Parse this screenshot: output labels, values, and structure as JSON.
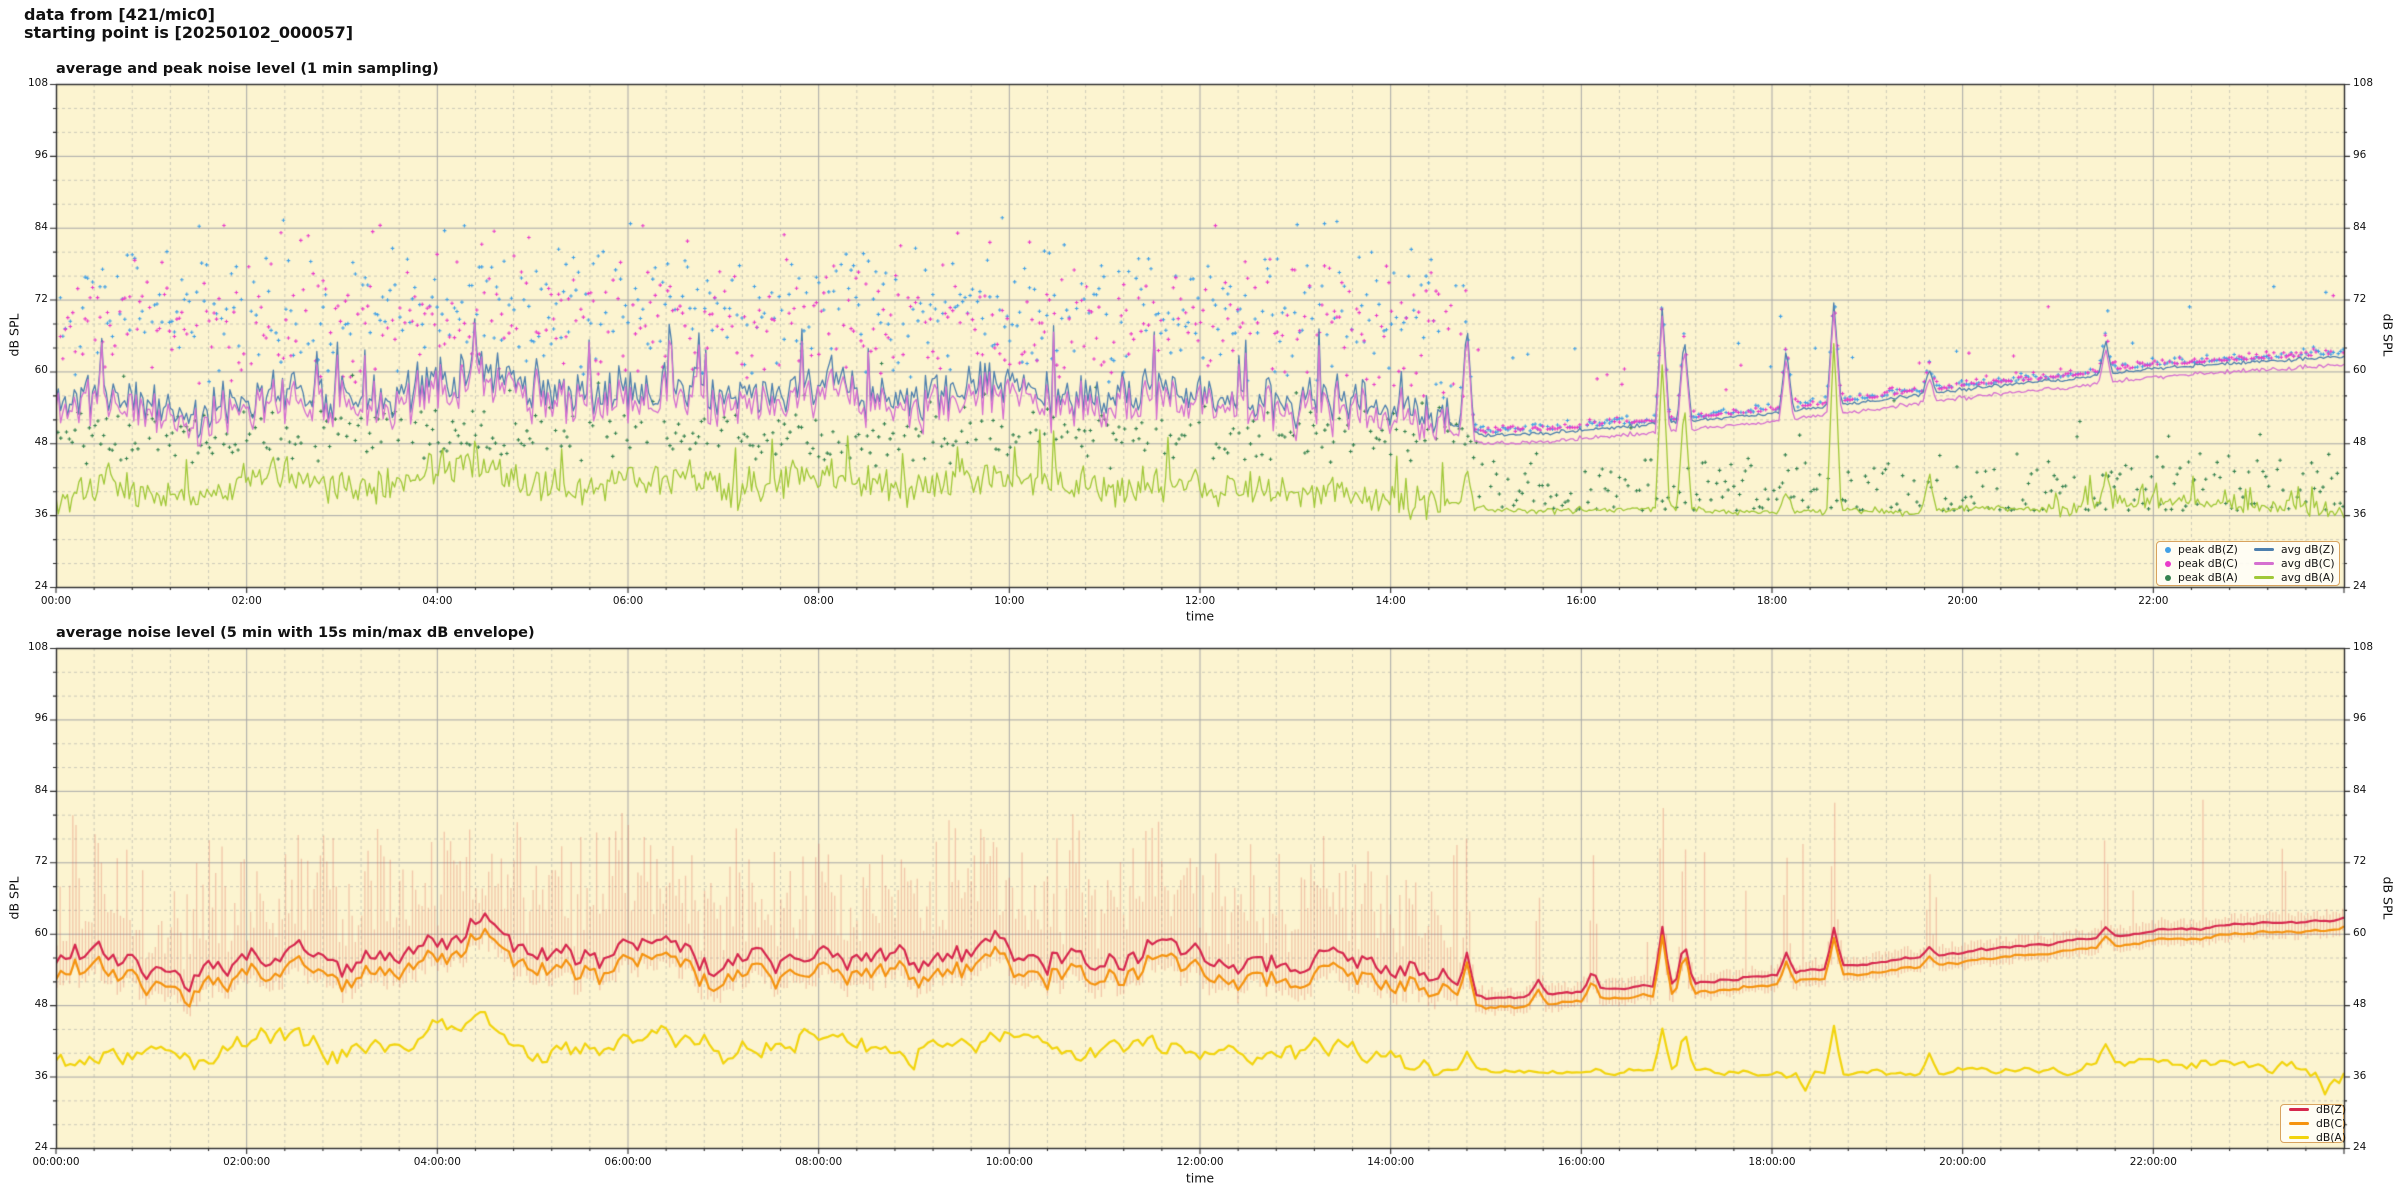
{
  "header": {
    "line1": "data from [421/mic0]",
    "line2": "starting point is [20250102_000057]"
  },
  "colors": {
    "figure_bg": "#ffffff",
    "plot_bg": "#fcf4d0",
    "grid_major": "#a8a8a8",
    "grid_minor": "#c2c0b4",
    "spine": "#2a2a2a",
    "peak_dBZ": "#41a0e6",
    "peak_dBC": "#e93bca",
    "peak_dBA": "#35824f",
    "avg_dBZ": "#4d7fae",
    "avg_dBC": "#d56fd0",
    "avg_dBA": "#a0c838",
    "dBZ_5min": "#d6274e",
    "dBC_5min": "#f5930f",
    "dBA_5min": "#f2d40e",
    "envelope": "rgba(225,110,90,0.32)",
    "legend_border": "#d8a35f"
  },
  "chart_data": [
    {
      "type": "line+scatter",
      "title": "average and peak noise level (1 min sampling)",
      "xlabel": "time",
      "ylabel_left": "dB SPL",
      "ylabel_right": "dB SPL",
      "xlim_hours": [
        0,
        24
      ],
      "ylim": [
        24,
        108
      ],
      "y_major_ticks": [
        24,
        36,
        48,
        60,
        72,
        84,
        96,
        108
      ],
      "y_minor_step_dB": 4,
      "x_major_step_hours": 2,
      "x_minor_step_minutes": 24,
      "x_tick_labels": [
        "00:00",
        "02:00",
        "04:00",
        "06:00",
        "08:00",
        "10:00",
        "12:00",
        "14:00",
        "16:00",
        "18:00",
        "20:00",
        "22:00"
      ],
      "grid": true,
      "legend_position": "lower right",
      "series": [
        {
          "name": "peak dB(Z)",
          "type": "scatter",
          "color": "#41a0e6",
          "early_band_dB": [
            61,
            87
          ],
          "late_offset_above_line_dB": [
            0.4,
            2.0
          ],
          "late_outlier_max_dB": 86
        },
        {
          "name": "peak dB(C)",
          "type": "scatter",
          "color": "#e93bca",
          "early_band_dB": [
            59,
            85
          ],
          "late_offset_above_line_dB": [
            0.3,
            1.8
          ],
          "late_outlier_max_dB": 84
        },
        {
          "name": "peak dB(A)",
          "type": "scatter",
          "color": "#35824f",
          "early_band_dB": [
            43,
            60
          ],
          "late_band_dB": [
            37,
            50
          ],
          "late_outlier_max_dB": 56
        },
        {
          "name": "avg dB(Z)",
          "type": "line",
          "color": "#4d7fae",
          "anchors_half_hour_dB": [
            55,
            57,
            54.5,
            52.5,
            56,
            57.5,
            55,
            55.5,
            59,
            61,
            57,
            55.5,
            57,
            58.5,
            55,
            56.5,
            58,
            56,
            55.5,
            57.5,
            58.5,
            56,
            55,
            57,
            56.5,
            55,
            54.5,
            56,
            54,
            52,
            49.2,
            49.6,
            50.2,
            50.8,
            51.5,
            52.2,
            53,
            54,
            55,
            56,
            57,
            57.8,
            58.5,
            59.5,
            60.5,
            61,
            61.5,
            62,
            62.5
          ],
          "jitter": {
            "early_amp_dB": 4.5,
            "early_spike_prob": 0.05,
            "early_spike_max_dB": 11,
            "late_amp_dB": 0.4,
            "quiet_after_hour": 14.6
          }
        },
        {
          "name": "avg dB(C)",
          "type": "line",
          "color": "#d56fd0",
          "offset_from_avg_dBZ_dB": {
            "early": -1.6,
            "late": -1.25
          },
          "jitter": {
            "early_amp_dB": 1.6,
            "late_amp_dB": 0.3
          }
        },
        {
          "name": "avg dB(A)",
          "type": "line",
          "color": "#a0c838",
          "anchors_half_hour_dB": [
            38,
            41,
            40,
            39,
            42,
            43,
            40,
            40.5,
            44,
            45,
            41,
            40,
            42,
            43,
            40,
            41,
            43,
            41,
            40.5,
            42,
            42.5,
            41,
            40,
            41.5,
            41,
            40,
            39.5,
            40.5,
            39,
            38,
            37,
            36.6,
            36.8,
            37,
            37.4,
            36.6,
            36.4,
            36.6,
            36.8,
            36.4,
            37.2,
            37,
            36.8,
            38.2,
            38.6,
            38.2,
            37.6,
            37.2,
            36.6
          ],
          "jitter": {
            "early_amp_dB": 3.6,
            "early_spike_prob": 0.04,
            "early_spike_max_dB": 8,
            "late_amp_dB": 0.7,
            "late_bumpy_after_hour": 20.9,
            "late_bumpy_amp_dB": 1.7
          }
        }
      ],
      "events": [
        {
          "t": 14.8,
          "z": 68,
          "a": 44
        },
        {
          "t": 16.85,
          "z": 71,
          "a": 62
        },
        {
          "t": 17.08,
          "z": 66,
          "a": 55
        },
        {
          "t": 18.15,
          "z": 64,
          "a": 40
        },
        {
          "t": 18.65,
          "z": 72,
          "a": 66
        },
        {
          "t": 19.65,
          "z": 60.5,
          "a": 43
        },
        {
          "t": 21.5,
          "z": 65,
          "a": 43
        }
      ]
    },
    {
      "type": "line+envelope",
      "title": "average noise level (5 min with 15s min/max dB envelope)",
      "xlabel": "time",
      "ylabel_left": "dB SPL",
      "ylabel_right": "dB SPL",
      "xlim_hours": [
        0,
        24
      ],
      "ylim": [
        24,
        108
      ],
      "y_major_ticks": [
        24,
        36,
        48,
        60,
        72,
        84,
        96,
        108
      ],
      "y_minor_step_dB": 4,
      "x_major_step_hours": 2,
      "x_minor_step_minutes": 24,
      "x_tick_labels": [
        "00:00:00",
        "02:00:00",
        "04:00:00",
        "06:00:00",
        "08:00:00",
        "10:00:00",
        "12:00:00",
        "14:00:00",
        "16:00:00",
        "18:00:00",
        "20:00:00",
        "22:00:00"
      ],
      "grid": true,
      "legend_position": "lower right",
      "series": [
        {
          "name": "dB(Z)",
          "type": "line",
          "color": "#d6274e",
          "anchors_half_hour_dB": [
            55,
            57,
            54.5,
            52.5,
            56,
            57.5,
            55,
            55.5,
            59,
            61,
            57,
            55.5,
            57,
            58.5,
            55,
            56.5,
            58,
            56,
            55.5,
            57.5,
            58.5,
            56,
            55,
            57,
            56.5,
            55,
            54.5,
            56,
            54,
            52,
            49.2,
            49.6,
            50.2,
            50.8,
            51.5,
            52.2,
            53,
            54,
            55,
            56,
            57,
            57.8,
            58.5,
            59.5,
            60.5,
            61,
            61.5,
            62,
            62.5
          ],
          "jitter": {
            "early_amp_dB": 3.0,
            "late_amp_dB": 0.35,
            "quiet_after_hour": 14.6
          }
        },
        {
          "name": "dB(C)",
          "type": "line",
          "color": "#f5930f",
          "offset_from_dBZ_dB": {
            "early": -2.6,
            "late": -1.6
          }
        },
        {
          "name": "dB(A)",
          "type": "line",
          "color": "#f2d40e",
          "anchors_half_hour_dB": [
            38,
            41,
            40,
            39,
            42,
            43,
            40,
            40.5,
            44,
            45,
            41,
            40,
            42,
            43,
            40,
            41,
            43,
            41,
            40.5,
            42,
            42.5,
            41,
            40,
            41.5,
            41,
            40,
            39.5,
            40.5,
            39,
            38,
            37,
            36.6,
            36.8,
            37,
            37.4,
            36.6,
            36.4,
            36.6,
            36.8,
            36.4,
            37.2,
            37,
            36.8,
            38.2,
            38.6,
            38.2,
            37.6,
            37.2,
            36.6
          ],
          "jitter": {
            "early_amp_dB": 2.4,
            "late_amp_dB": 0.6,
            "late_bumpy_after_hour": 20.9,
            "late_bumpy_amp_dB": 1.3
          }
        },
        {
          "name": "15s min/max dB envelope",
          "type": "band",
          "color": "rgba(225,110,90,0.32)",
          "early_max_range_dB": [
            58,
            85
          ],
          "min_below_dBC_dB": [
            1,
            2.6
          ],
          "late_max_above_dBZ_dB": [
            0.8,
            2.0
          ]
        }
      ],
      "events": [
        {
          "t": 14.8,
          "z": 57,
          "a": 40,
          "env": 78
        },
        {
          "t": 15.55,
          "z": 52,
          "env": 70
        },
        {
          "t": 16.12,
          "z": 54,
          "env": 72
        },
        {
          "t": 16.85,
          "z": 61,
          "a": 44,
          "env": 86
        },
        {
          "t": 17.08,
          "z": 59,
          "a": 44,
          "env": 80
        },
        {
          "t": 18.15,
          "z": 57,
          "a": 36,
          "env": 76
        },
        {
          "t": 18.35,
          "a": 33.8
        },
        {
          "t": 18.65,
          "z": 61,
          "a": 45,
          "env": 86
        },
        {
          "t": 19.65,
          "z": 58,
          "a": 40,
          "env": 72
        },
        {
          "t": 21.5,
          "z": 61,
          "a": 41,
          "env": 80
        },
        {
          "t": 23.8,
          "a": 33.2
        }
      ]
    }
  ]
}
